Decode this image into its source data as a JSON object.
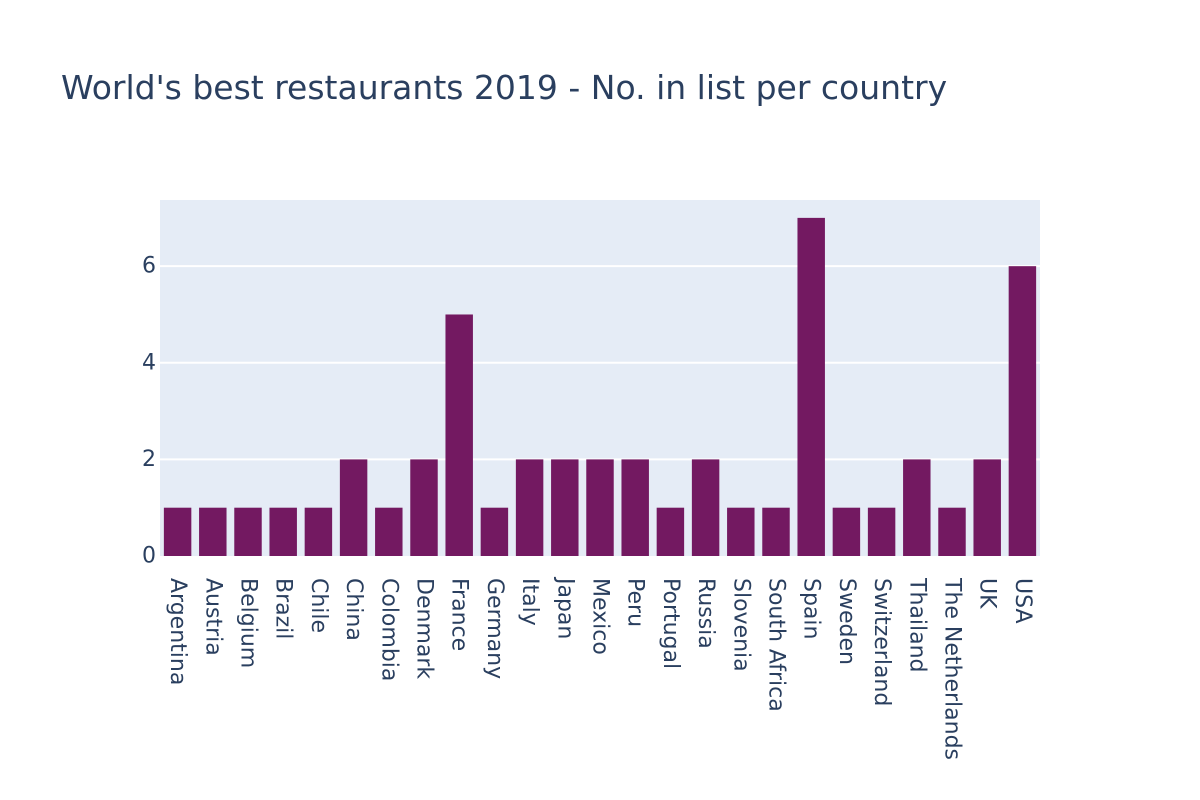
{
  "chart_data": {
    "type": "bar",
    "title": "World's best restaurants 2019 - No. in list per country",
    "xlabel": "",
    "ylabel": "",
    "categories": [
      "Argentina",
      "Austria",
      "Belgium",
      "Brazil",
      "Chile",
      "China",
      "Colombia",
      "Denmark",
      "France",
      "Germany",
      "Italy",
      "Japan",
      "Mexico",
      "Peru",
      "Portugal",
      "Russia",
      "Slovenia",
      "South Africa",
      "Spain",
      "Sweden",
      "Switzerland",
      "Thailand",
      "The Netherlands",
      "UK",
      "USA"
    ],
    "values": [
      1,
      1,
      1,
      1,
      1,
      2,
      1,
      2,
      5,
      1,
      2,
      2,
      2,
      2,
      1,
      2,
      1,
      1,
      7,
      1,
      1,
      2,
      1,
      2,
      6
    ],
    "ylim": [
      0,
      7.37
    ],
    "yticks": [
      0,
      2,
      4,
      6
    ],
    "grid": true,
    "bar_color": "#731961",
    "plot_background": "#e5ecf6",
    "text_color": "#2a3f5f"
  }
}
